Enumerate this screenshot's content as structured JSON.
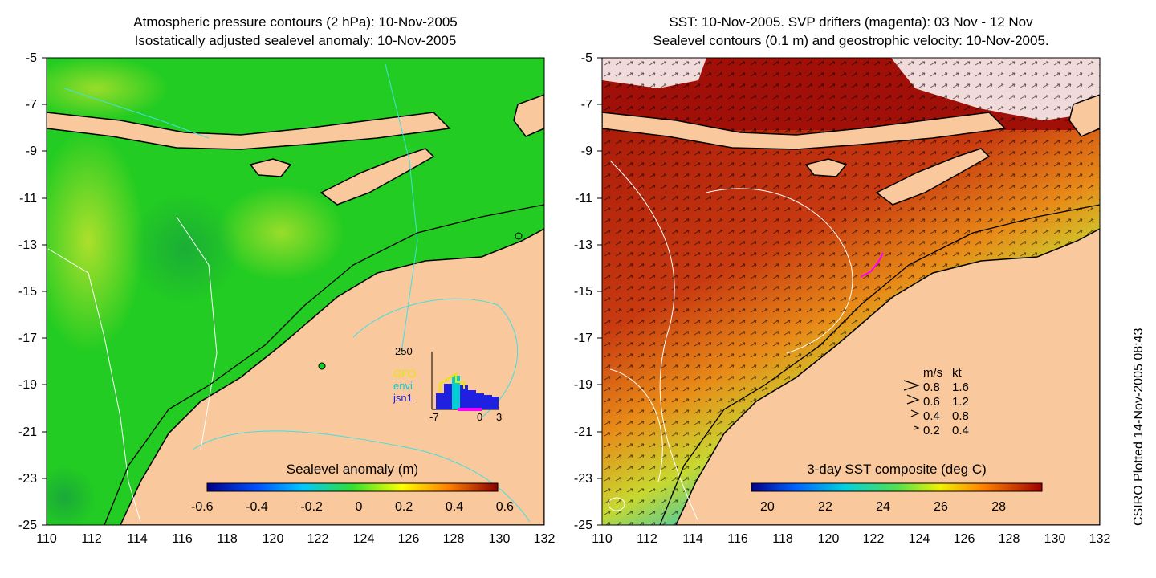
{
  "left_panel": {
    "title_line1": "Atmospheric pressure contours (2 hPa): 10-Nov-2005",
    "title_line2": "Isostatically adjusted sealevel anomaly: 10-Nov-2005",
    "colorbar_label": "Sealevel anomaly (m)",
    "colorbar_ticks": [
      "-0.6",
      "-0.4",
      "-0.2",
      "0",
      "0.2",
      "0.4",
      "0.6"
    ],
    "inset": {
      "ymax_label": "250",
      "x_ticks": [
        "-7",
        "0",
        "3"
      ],
      "legend": [
        {
          "text": "GFO",
          "color": "#e6e600"
        },
        {
          "text": "envi",
          "color": "#00d0d0"
        },
        {
          "text": "jsn1",
          "color": "#2020e0"
        }
      ]
    }
  },
  "right_panel": {
    "title_line1": "SST: 10-Nov-2005. SVP drifters (magenta): 03 Nov - 12 Nov",
    "title_line2": "Sealevel contours (0.1 m) and geostrophic velocity: 10-Nov-2005.",
    "colorbar_label": "3-day SST composite (deg C)",
    "colorbar_ticks": [
      "20",
      "22",
      "24",
      "26",
      "28"
    ],
    "velocity_legend": {
      "header_ms": "m/s",
      "header_kt": "kt",
      "rows": [
        {
          "ms": "0.8",
          "kt": "1.6"
        },
        {
          "ms": "0.6",
          "kt": "1.2"
        },
        {
          "ms": "0.4",
          "kt": "0.8"
        },
        {
          "ms": "0.2",
          "kt": "0.4"
        }
      ]
    }
  },
  "axes": {
    "lat_ticks": [
      "-5",
      "-7",
      "-9",
      "-11",
      "-13",
      "-15",
      "-17",
      "-19",
      "-21",
      "-23",
      "-25"
    ],
    "lon_ticks": [
      "110",
      "112",
      "114",
      "116",
      "118",
      "120",
      "122",
      "124",
      "126",
      "128",
      "130",
      "132"
    ]
  },
  "footer_text": "CSIRO Plotted 14-Nov-2005 08:43",
  "colors": {
    "land": "#f9c89c",
    "ocean_green": "#22cc22",
    "sst_red": "#a01010",
    "coast": "#000000",
    "pressure_contour": "#40e0e0"
  }
}
